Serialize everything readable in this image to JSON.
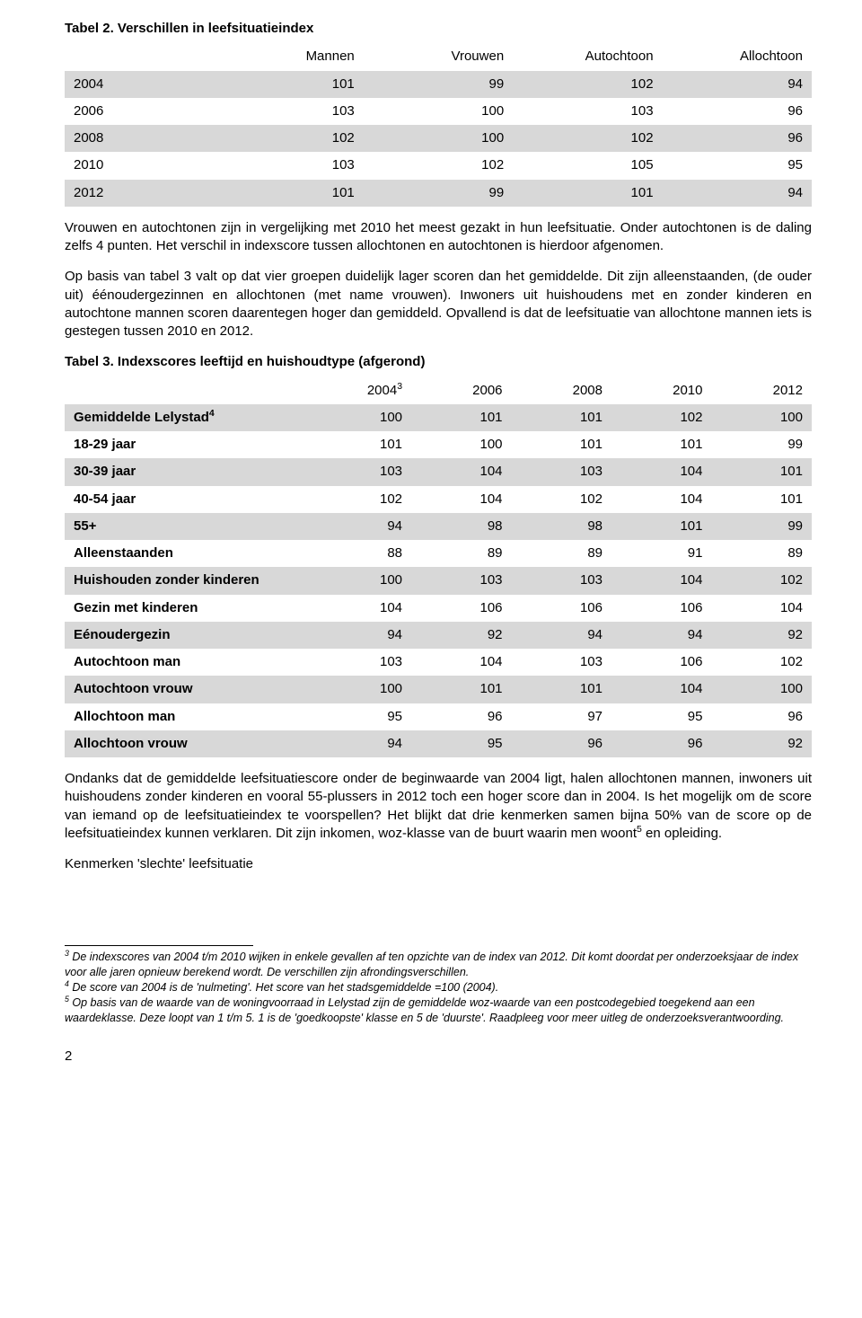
{
  "table2": {
    "title": "Tabel 2. Verschillen in leefsituatieindex",
    "columns": [
      "",
      "Mannen",
      "Vrouwen",
      "Autochtoon",
      "Allochtoon"
    ],
    "col_widths": [
      "20%",
      "20%",
      "20%",
      "20%",
      "20%"
    ],
    "rows": [
      {
        "cells": [
          "2004",
          "101",
          "99",
          "102",
          "94"
        ],
        "shaded": true
      },
      {
        "cells": [
          "2006",
          "103",
          "100",
          "103",
          "96"
        ],
        "shaded": false
      },
      {
        "cells": [
          "2008",
          "102",
          "100",
          "102",
          "96"
        ],
        "shaded": true
      },
      {
        "cells": [
          "2010",
          "103",
          "102",
          "105",
          "95"
        ],
        "shaded": false
      },
      {
        "cells": [
          "2012",
          "101",
          "99",
          "101",
          "94"
        ],
        "shaded": true
      }
    ]
  },
  "para1": "Vrouwen en autochtonen zijn in vergelijking met 2010 het meest gezakt in hun leefsituatie. Onder autochtonen is de daling zelfs 4 punten. Het verschil in indexscore tussen allochtonen en autochtonen is hierdoor afgenomen.",
  "para2": "Op basis van tabel 3 valt op dat vier groepen duidelijk lager scoren dan het gemiddelde. Dit zijn alleenstaanden, (de ouder uit) éénoudergezinnen en allochtonen (met name vrouwen). Inwoners uit huishoudens met en zonder kinderen en autochtone mannen scoren daarentegen hoger dan gemiddeld. Opvallend is dat de leefsituatie van allochtone mannen iets is gestegen tussen 2010 en 2012.",
  "table3": {
    "title": "Tabel 3. Indexscores  leeftijd en huishoudtype (afgerond)",
    "columns": [
      "",
      "2004",
      "2006",
      "2008",
      "2010",
      "2012"
    ],
    "col_sups": [
      "",
      "3",
      "",
      "",
      "",
      ""
    ],
    "col_widths": [
      "33%",
      "13.4%",
      "13.4%",
      "13.4%",
      "13.4%",
      "13.4%"
    ],
    "rows": [
      {
        "cells": [
          "Gemiddelde Lelystad",
          "100",
          "101",
          "101",
          "102",
          "100"
        ],
        "sup": "4",
        "shaded": true,
        "bold": true
      },
      {
        "cells": [
          "18-29 jaar",
          "101",
          "100",
          "101",
          "101",
          "99"
        ],
        "shaded": false,
        "bold": true
      },
      {
        "cells": [
          "30-39 jaar",
          "103",
          "104",
          "103",
          "104",
          "101"
        ],
        "shaded": true,
        "bold": true
      },
      {
        "cells": [
          "40-54 jaar",
          "102",
          "104",
          "102",
          "104",
          "101"
        ],
        "shaded": false,
        "bold": true
      },
      {
        "cells": [
          "55+",
          "94",
          "98",
          "98",
          "101",
          "99"
        ],
        "shaded": true,
        "bold": true
      },
      {
        "cells": [
          "Alleenstaanden",
          "88",
          "89",
          "89",
          "91",
          "89"
        ],
        "shaded": false,
        "bold": true
      },
      {
        "cells": [
          "Huishouden zonder kinderen",
          "100",
          "103",
          "103",
          "104",
          "102"
        ],
        "shaded": true,
        "bold": true
      },
      {
        "cells": [
          "Gezin met kinderen",
          "104",
          "106",
          "106",
          "106",
          "104"
        ],
        "shaded": false,
        "bold": true
      },
      {
        "cells": [
          "Eénoudergezin",
          "94",
          "92",
          "94",
          "94",
          "92"
        ],
        "shaded": true,
        "bold": true
      },
      {
        "cells": [
          "Autochtoon man",
          "103",
          "104",
          "103",
          "106",
          "102"
        ],
        "shaded": false,
        "bold": true
      },
      {
        "cells": [
          "Autochtoon vrouw",
          "100",
          "101",
          "101",
          "104",
          "100"
        ],
        "shaded": true,
        "bold": true
      },
      {
        "cells": [
          "Allochtoon man",
          "95",
          "96",
          "97",
          "95",
          "96"
        ],
        "shaded": false,
        "bold": true
      },
      {
        "cells": [
          "Allochtoon vrouw",
          "94",
          "95",
          "96",
          "96",
          "92"
        ],
        "shaded": true,
        "bold": true
      }
    ]
  },
  "para3": "Ondanks dat de gemiddelde leefsituatiescore onder de beginwaarde van 2004 ligt, halen allochtonen mannen, inwoners uit huishoudens zonder kinderen en vooral 55-plussers in 2012 toch een hoger score dan in 2004. Is het mogelijk om de score van iemand op de leefsituatieindex te voorspellen? Het blijkt dat drie kenmerken samen bijna 50% van de score op de leefsituatieindex kunnen verklaren. Dit zijn inkomen, woz-klasse van de buurt waarin men woont",
  "para3_sup": "5",
  "para3_tail": " en opleiding.",
  "subhead": "Kenmerken 'slechte' leefsituatie",
  "footnotes": [
    {
      "num": "3",
      "text": "De indexscores van 2004 t/m 2010 wijken in enkele gevallen af ten opzichte van de index van 2012. Dit komt doordat per onderzoeksjaar de index voor alle jaren opnieuw berekend wordt. De verschillen zijn afrondingsverschillen."
    },
    {
      "num": "4",
      "text": "De score van 2004 is de 'nulmeting'. Het score van het stadsgemiddelde =100 (2004)."
    },
    {
      "num": "5",
      "text": "Op basis van de waarde van de woningvoorraad in Lelystad zijn de gemiddelde woz-waarde van een postcodegebied toegekend aan een waardeklasse. Deze loopt van 1 t/m 5. 1 is de 'goedkoopste' klasse en 5 de 'duurste'. Raadpleeg voor meer uitleg de onderzoeksverantwoording."
    }
  ],
  "page_number": "2",
  "style": {
    "shade_color": "#d8d8d8",
    "background": "#ffffff",
    "text_color": "#000000"
  }
}
